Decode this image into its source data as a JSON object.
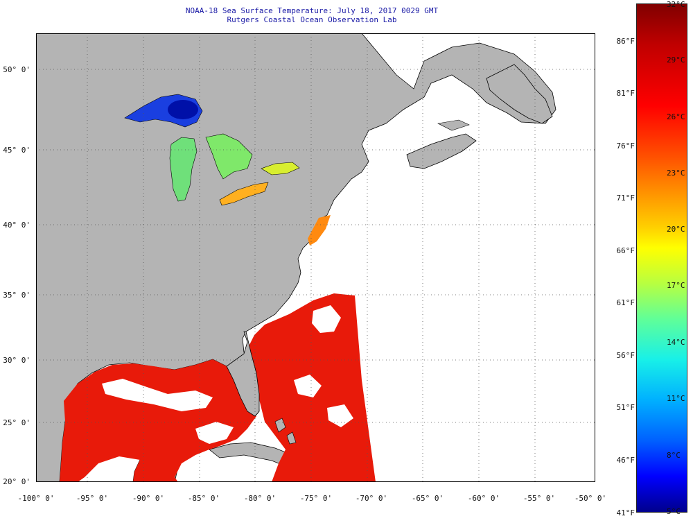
{
  "title": {
    "line1": "NOAA-18 Sea Surface Temperature:  July 18, 2017 0029 GMT",
    "line2": "Rutgers Coastal Ocean Observation Lab"
  },
  "axes": {
    "lat_labels": [
      "50° 0'",
      "45° 0'",
      "40° 0'",
      "35° 0'",
      "30° 0'",
      "25° 0'",
      "20° 0'"
    ],
    "lon_labels": [
      "-100° 0'",
      "-95° 0'",
      "-90° 0'",
      "-85° 0'",
      "-80° 0'",
      "-75° 0'",
      "-70° 0'",
      "-65° 0'",
      "-60° 0'",
      "-55° 0'",
      "-50° 0'"
    ]
  },
  "colorbar": {
    "celsius_labels": [
      "32°C",
      "29°C",
      "26°C",
      "23°C",
      "20°C",
      "17°C",
      "14°C",
      "11°C",
      "8°C",
      "5°C"
    ],
    "fahrenheit_labels": [
      "86°F",
      "81°F",
      "76°F",
      "71°F",
      "66°F",
      "61°F",
      "56°F",
      "51°F",
      "46°F",
      "41°F"
    ],
    "range_c": [
      5,
      32
    ]
  },
  "map": {
    "lon_range": [
      -100,
      -50
    ],
    "lat_range": [
      20,
      52.5
    ],
    "land_color": "#b4b4b4",
    "cloud_no_data_color": "#ffffff",
    "coastline_color": "#000000",
    "gridline_style": "dotted"
  },
  "chart_data": {
    "type": "heatmap",
    "title": "NOAA-18 Sea Surface Temperature:  July 18, 2017 0029 GMT",
    "subtitle": "Rutgers Coastal Ocean Observation Lab",
    "x_ticks": [
      -100,
      -95,
      -90,
      -85,
      -80,
      -75,
      -70,
      -65,
      -60,
      -55,
      -50
    ],
    "y_ticks": [
      20,
      25,
      30,
      35,
      40,
      45,
      50
    ],
    "colorscale": "jet",
    "value_range_c": [
      5,
      32
    ],
    "grid": true
  }
}
